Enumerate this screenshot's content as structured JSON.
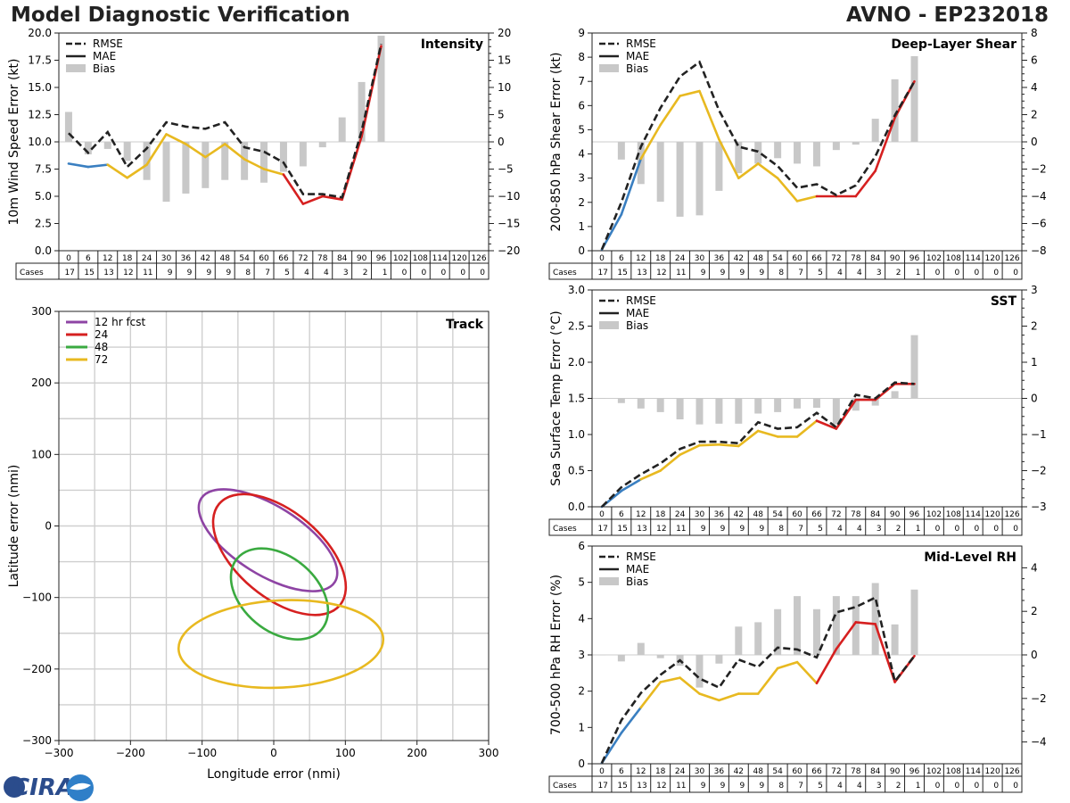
{
  "header": {
    "title": "Model Diagnostic Verification",
    "storm": "AVNO - EP232018"
  },
  "legend_labels": {
    "rmse": "RMSE",
    "mae": "MAE",
    "bias": "Bias"
  },
  "cases_label": "Cases",
  "logo": {
    "text": "CIRA"
  },
  "colors": {
    "rmse": "#222222",
    "bias": "#c8c8c8",
    "mae_early": "#3a7fc1",
    "mae_mid": "#e8b920",
    "mae_late": "#d62020"
  },
  "chart_data": [
    {
      "id": "intensity",
      "type": "line+bar",
      "title": "Intensity",
      "ylabel": "10m Wind Speed Error (kt)",
      "ylim": [
        0,
        20
      ],
      "yticks": [
        0.0,
        2.5,
        5.0,
        7.5,
        10.0,
        12.5,
        15.0,
        17.5,
        20.0
      ],
      "ydecimals": 1,
      "y2lim": [
        -20,
        20
      ],
      "y2ticks": [
        -20,
        -15,
        -10,
        -5,
        0,
        5,
        10,
        15,
        20
      ],
      "x": [
        0,
        6,
        12,
        18,
        24,
        30,
        36,
        42,
        48,
        54,
        60,
        66,
        72,
        78,
        84,
        90,
        96,
        102,
        108,
        114,
        120,
        126
      ],
      "cases": [
        17,
        15,
        13,
        12,
        11,
        9,
        9,
        9,
        9,
        8,
        7,
        5,
        4,
        4,
        3,
        2,
        1,
        0,
        0,
        0,
        0,
        0
      ],
      "rmse": [
        10.8,
        9.0,
        10.9,
        7.7,
        9.4,
        11.8,
        11.4,
        11.2,
        11.8,
        9.5,
        9.1,
        8.1,
        5.2,
        5.2,
        4.9,
        11.0,
        19.0
      ],
      "mae": [
        8.0,
        7.7,
        7.9,
        6.7,
        7.9,
        10.7,
        9.8,
        8.6,
        9.8,
        8.4,
        7.5,
        7.0,
        4.3,
        5.0,
        4.7,
        10.5,
        18.8
      ],
      "bias": [
        5.5,
        -2.3,
        -1.3,
        -3.5,
        -7.0,
        -11.0,
        -9.5,
        -8.5,
        -7.0,
        -7.0,
        -7.5,
        -5.5,
        -4.5,
        -1.0,
        4.5,
        11.0,
        19.5
      ]
    },
    {
      "id": "shear",
      "type": "line+bar",
      "title": "Deep-Layer Shear",
      "ylabel": "200-850 hPa Shear Error (kt)",
      "ylim": [
        0,
        9
      ],
      "yticks": [
        0,
        1,
        2,
        3,
        4,
        5,
        6,
        7,
        8,
        9
      ],
      "ydecimals": 0,
      "y2lim": [
        -8,
        8
      ],
      "y2ticks": [
        -8,
        -6,
        -4,
        -2,
        0,
        2,
        4,
        6,
        8
      ],
      "x": [
        0,
        6,
        12,
        18,
        24,
        30,
        36,
        42,
        48,
        54,
        60,
        66,
        72,
        78,
        84,
        90,
        96,
        102,
        108,
        114,
        120,
        126
      ],
      "cases": [
        17,
        15,
        13,
        12,
        11,
        9,
        9,
        9,
        9,
        8,
        7,
        5,
        4,
        4,
        3,
        2,
        1,
        0,
        0,
        0,
        0,
        0
      ],
      "rmse": [
        0.05,
        2.0,
        4.3,
        5.9,
        7.2,
        7.8,
        5.8,
        4.3,
        4.1,
        3.5,
        2.6,
        2.75,
        2.3,
        2.7,
        3.9,
        5.6,
        7.0
      ],
      "mae": [
        0.05,
        1.5,
        3.8,
        5.2,
        6.4,
        6.6,
        4.6,
        3.0,
        3.6,
        3.0,
        2.05,
        2.25,
        2.25,
        2.25,
        3.3,
        5.5,
        7.0
      ],
      "bias": [
        0.0,
        -1.3,
        -3.1,
        -4.4,
        -5.5,
        -5.4,
        -3.6,
        -2.3,
        -1.6,
        -1.2,
        -1.6,
        -1.8,
        -0.6,
        -0.2,
        1.7,
        4.6,
        6.3
      ]
    },
    {
      "id": "sst",
      "type": "line+bar",
      "title": "SST",
      "ylabel": "Sea Surface Temp Error (°C)",
      "ylim": [
        0,
        3
      ],
      "yticks": [
        0.0,
        0.5,
        1.0,
        1.5,
        2.0,
        2.5,
        3.0
      ],
      "ydecimals": 1,
      "y2lim": [
        -3,
        3
      ],
      "y2ticks": [
        -3,
        -2,
        -1,
        0,
        1,
        2,
        3
      ],
      "x": [
        0,
        6,
        12,
        18,
        24,
        30,
        36,
        42,
        48,
        54,
        60,
        66,
        72,
        78,
        84,
        90,
        96,
        102,
        108,
        114,
        120,
        126
      ],
      "cases": [
        17,
        15,
        13,
        12,
        11,
        9,
        9,
        9,
        9,
        8,
        7,
        5,
        4,
        4,
        3,
        2,
        1,
        0,
        0,
        0,
        0,
        0
      ],
      "rmse": [
        0.0,
        0.27,
        0.45,
        0.6,
        0.8,
        0.9,
        0.9,
        0.88,
        1.17,
        1.08,
        1.1,
        1.3,
        1.1,
        1.55,
        1.5,
        1.72,
        1.7
      ],
      "mae": [
        0.0,
        0.22,
        0.38,
        0.5,
        0.72,
        0.85,
        0.86,
        0.84,
        1.05,
        0.97,
        0.97,
        1.19,
        1.08,
        1.48,
        1.48,
        1.7,
        1.7
      ],
      "bias": [
        0.0,
        -0.13,
        -0.28,
        -0.38,
        -0.58,
        -0.72,
        -0.7,
        -0.7,
        -0.42,
        -0.38,
        -0.28,
        -0.26,
        -0.72,
        -0.34,
        -0.2,
        0.2,
        1.75
      ]
    },
    {
      "id": "midrh",
      "type": "line+bar",
      "title": "Mid-Level RH",
      "ylabel": "700-500 hPa RH Error (%)",
      "ylim": [
        0,
        6
      ],
      "yticks": [
        0,
        1,
        2,
        3,
        4,
        5,
        6
      ],
      "ydecimals": 0,
      "y2lim": [
        -5,
        5
      ],
      "y2ticks": [
        -4,
        -2,
        0,
        2,
        4
      ],
      "x": [
        0,
        6,
        12,
        18,
        24,
        30,
        36,
        42,
        48,
        54,
        60,
        66,
        72,
        78,
        84,
        90,
        96,
        102,
        108,
        114,
        120,
        126
      ],
      "cases": [
        17,
        15,
        13,
        12,
        11,
        9,
        9,
        9,
        9,
        8,
        7,
        5,
        4,
        4,
        3,
        2,
        1,
        0,
        0,
        0,
        0,
        0
      ],
      "rmse": [
        0.02,
        1.2,
        1.95,
        2.45,
        2.85,
        2.35,
        2.1,
        2.87,
        2.67,
        3.2,
        3.15,
        2.93,
        4.17,
        4.32,
        4.58,
        2.27,
        2.97
      ],
      "mae": [
        0.02,
        0.85,
        1.55,
        2.25,
        2.37,
        1.93,
        1.75,
        1.93,
        1.93,
        2.63,
        2.8,
        2.22,
        3.16,
        3.9,
        3.85,
        2.25,
        2.97
      ],
      "bias": [
        0.0,
        -0.3,
        0.55,
        -0.15,
        -0.5,
        -1.5,
        -0.4,
        1.3,
        1.5,
        2.1,
        2.7,
        2.1,
        2.7,
        2.7,
        3.3,
        1.4,
        3.0
      ]
    },
    {
      "id": "track",
      "type": "ellipse",
      "title": "Track",
      "xlabel": "Longitude error (nmi)",
      "ylabel": "Latitude error (nmi)",
      "xlim": [
        -300,
        300
      ],
      "ylim": [
        -300,
        300
      ],
      "xticks": [
        -300,
        -200,
        -100,
        0,
        100,
        200,
        300
      ],
      "yticks": [
        -300,
        -200,
        -100,
        0,
        100,
        200,
        300
      ],
      "legend_title": "12 hr fcst",
      "series": [
        {
          "name": "12 hr fcst",
          "color": "#8e44a4",
          "cx": -8,
          "cy": -20,
          "rx": 110,
          "ry": 48,
          "rot_deg": -32
        },
        {
          "name": "24",
          "color": "#d62020",
          "cx": 8,
          "cy": -40,
          "rx": 110,
          "ry": 60,
          "rot_deg": -40
        },
        {
          "name": "48",
          "color": "#3aaa40",
          "cx": 8,
          "cy": -95,
          "rx": 77,
          "ry": 52,
          "rot_deg": -40
        },
        {
          "name": "72",
          "color": "#e8b920",
          "cx": 10,
          "cy": -165,
          "rx": 143,
          "ry": 61,
          "rot_deg": 3
        }
      ]
    }
  ]
}
